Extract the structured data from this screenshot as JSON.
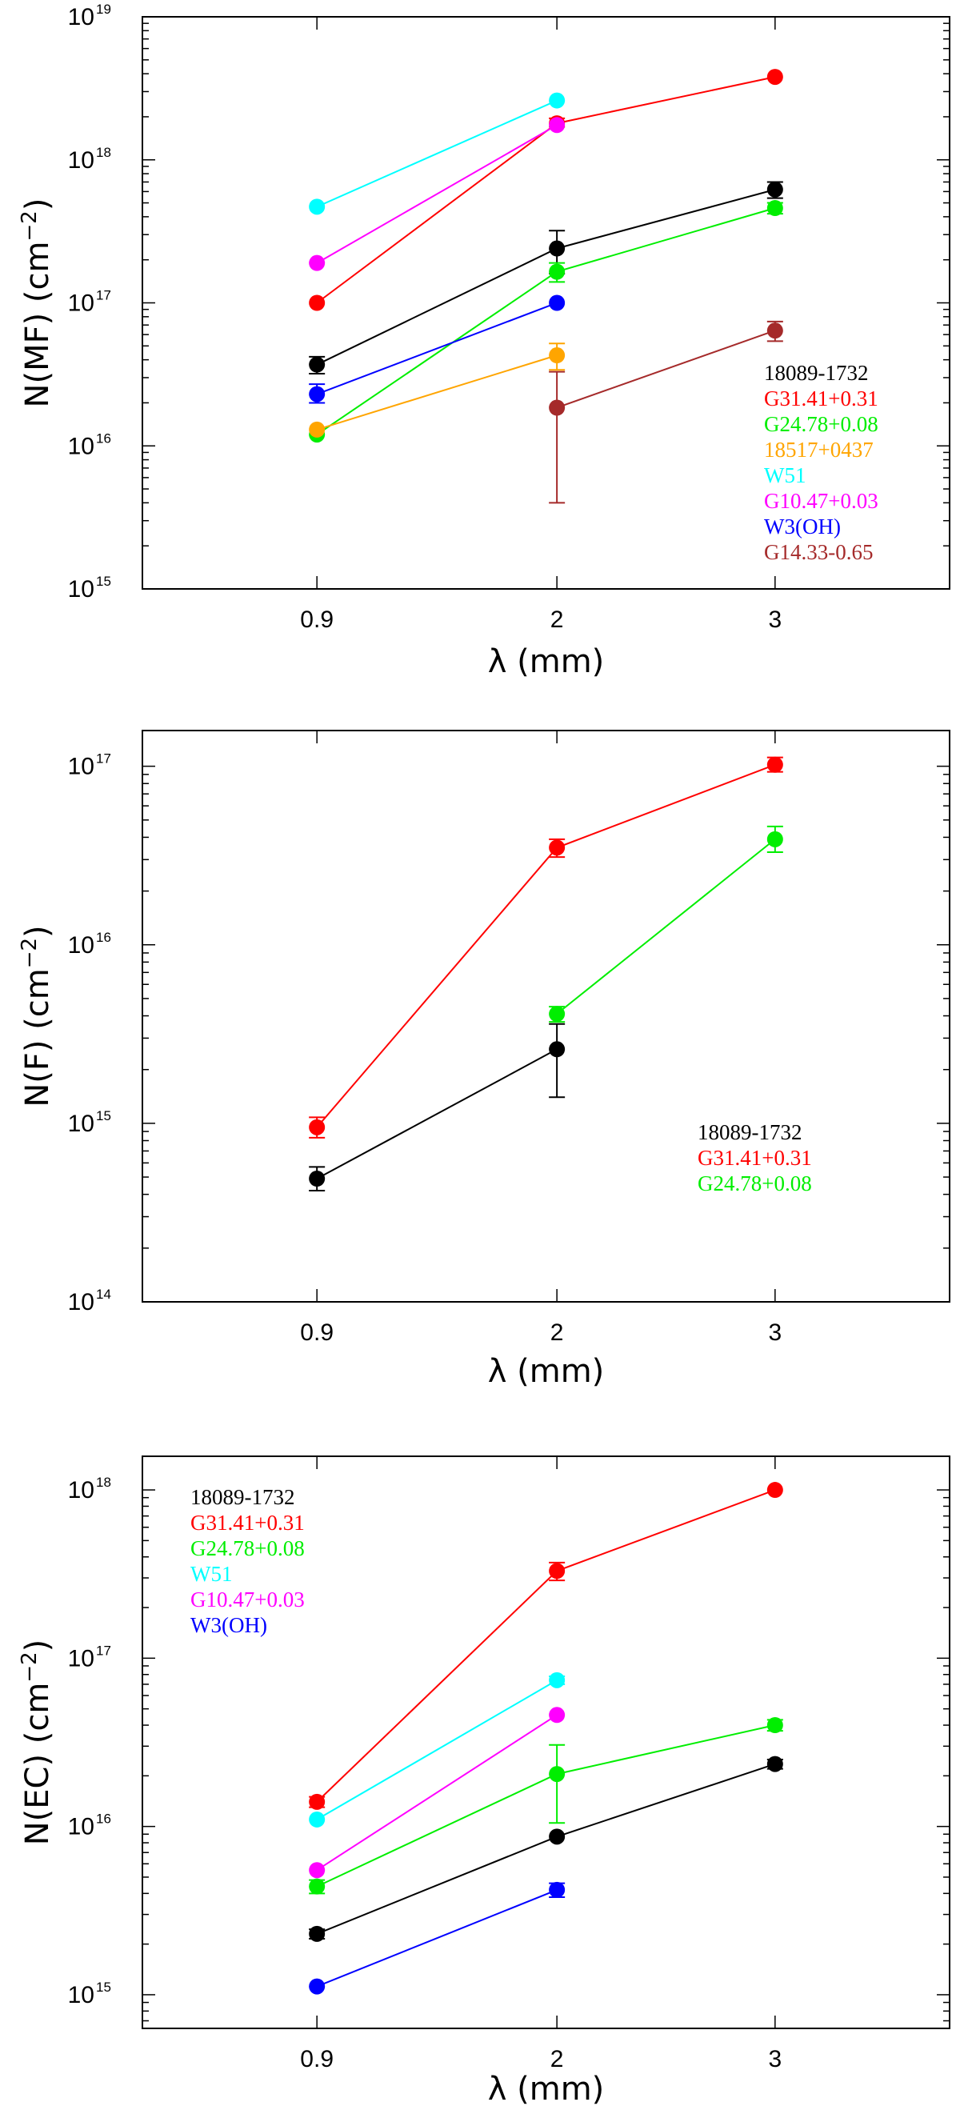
{
  "chart_data": [
    {
      "type": "scatter",
      "panel": "MF",
      "ylabel": "N(MF)  (cm",
      "ylabel_exp": "−2",
      "ylabel_close": ")",
      "xlabel": "λ  (mm)",
      "yscale": "log",
      "ylim_exp": [
        15,
        19
      ],
      "ytick_exps": [
        "15",
        "16",
        "17",
        "18",
        "19"
      ],
      "xlim": [
        0.1,
        3.8
      ],
      "x_ticks": [
        0.9,
        2,
        3
      ],
      "x_tick_labels": [
        "0.9",
        "2",
        "3"
      ],
      "legend_position": "lower-right",
      "series": [
        {
          "name": "18089-1732",
          "color": "#000000",
          "x": [
            0.9,
            2,
            3
          ],
          "y": [
            3.7e+16,
            2.4e+17,
            6.2e+17
          ],
          "yerr_low": [
            3.2e+16,
            1.6e+17,
            5.4e+17
          ],
          "yerr_high": [
            4.2e+16,
            3.2e+17,
            7e+17
          ]
        },
        {
          "name": "G31.41+0.31",
          "color": "#ff0000",
          "x": [
            0.9,
            2,
            3
          ],
          "y": [
            1e+17,
            1.8e+18,
            3.8e+18
          ],
          "yerr_low": [
            null,
            1.7e+18,
            null
          ],
          "yerr_high": [
            null,
            1.95e+18,
            null
          ]
        },
        {
          "name": "G24.78+0.08",
          "color": "#00ee00",
          "x": [
            0.9,
            2,
            3
          ],
          "y": [
            1.2e+16,
            1.65e+17,
            4.6e+17
          ],
          "yerr_low": [
            null,
            1.4e+17,
            4.2e+17
          ],
          "yerr_high": [
            null,
            1.9e+17,
            5e+17
          ]
        },
        {
          "name": "18517+0437",
          "color": "#ffa500",
          "x": [
            0.9,
            2
          ],
          "y": [
            1.3e+16,
            4.3e+16
          ],
          "yerr_low": [
            null,
            3.4e+16
          ],
          "yerr_high": [
            null,
            5.2e+16
          ]
        },
        {
          "name": "W51",
          "color": "#00ffff",
          "x": [
            0.9,
            2
          ],
          "y": [
            4.7e+17,
            2.6e+18
          ],
          "yerr_low": [
            null,
            null
          ],
          "yerr_high": [
            null,
            null
          ]
        },
        {
          "name": "G10.47+0.03",
          "color": "#ff00ff",
          "x": [
            0.9,
            2
          ],
          "y": [
            1.9e+17,
            1.75e+18
          ],
          "yerr_low": [
            null,
            null
          ],
          "yerr_high": [
            null,
            null
          ]
        },
        {
          "name": "W3(OH)",
          "color": "#0000ff",
          "x": [
            0.9,
            2
          ],
          "y": [
            2.3e+16,
            1e+17
          ],
          "yerr_low": [
            2e+16,
            null
          ],
          "yerr_high": [
            2.7e+16,
            null
          ]
        },
        {
          "name": "G14.33-0.65",
          "color": "#a52a2a",
          "x": [
            2,
            3
          ],
          "y": [
            1.85e+16,
            6.4e+16
          ],
          "yerr_low": [
            4000000000000000.0,
            5.4e+16
          ],
          "yerr_high": [
            3.3e+16,
            7.4e+16
          ]
        }
      ]
    },
    {
      "type": "scatter",
      "panel": "F",
      "ylabel": "N(F)  (cm",
      "ylabel_exp": "−2",
      "ylabel_close": ")",
      "xlabel": "λ  (mm)",
      "yscale": "log",
      "ylim_exp": [
        14,
        17.2
      ],
      "ytick_exps": [
        "14",
        "15",
        "16",
        "17"
      ],
      "xlim": [
        0.1,
        3.8
      ],
      "x_ticks": [
        0.9,
        2,
        3
      ],
      "x_tick_labels": [
        "0.9",
        "2",
        "3"
      ],
      "legend_position": "lower-right",
      "series": [
        {
          "name": "18089-1732",
          "color": "#000000",
          "x": [
            0.9,
            2
          ],
          "y": [
            490000000000000.0,
            2600000000000000.0
          ],
          "yerr_low": [
            420000000000000.0,
            1400000000000000.0
          ],
          "yerr_high": [
            570000000000000.0,
            3600000000000000.0
          ]
        },
        {
          "name": "G31.41+0.31",
          "color": "#ff0000",
          "x": [
            0.9,
            2,
            3
          ],
          "y": [
            950000000000000.0,
            3.5e+16,
            1.02e+17
          ],
          "yerr_low": [
            830000000000000.0,
            3.1e+16,
            9.3e+16
          ],
          "yerr_high": [
            1080000000000000.0,
            3.9e+16,
            1.12e+17
          ]
        },
        {
          "name": "G24.78+0.08",
          "color": "#00ee00",
          "x": [
            2,
            3
          ],
          "y": [
            4100000000000000.0,
            3.9e+16
          ],
          "yerr_low": [
            3700000000000000.0,
            3.3e+16
          ],
          "yerr_high": [
            4500000000000000.0,
            4.6e+16
          ]
        }
      ]
    },
    {
      "type": "scatter",
      "panel": "EC",
      "ylabel": "N(EC)  (cm",
      "ylabel_exp": "−2",
      "ylabel_close": ")",
      "xlabel": "λ  (mm)",
      "yscale": "log",
      "ylim_exp": [
        14.8,
        18.2
      ],
      "ytick_exps": [
        "15",
        "16",
        "17",
        "18"
      ],
      "xlim": [
        0.1,
        3.8
      ],
      "x_ticks": [
        0.9,
        2,
        3
      ],
      "x_tick_labels": [
        "0.9",
        "2",
        "3"
      ],
      "legend_position": "top-left",
      "series": [
        {
          "name": "18089-1732",
          "color": "#000000",
          "x": [
            0.9,
            2,
            3
          ],
          "y": [
            2300000000000000.0,
            8700000000000000.0,
            2.35e+16
          ],
          "yerr_low": [
            2150000000000000.0,
            null,
            2.2e+16
          ],
          "yerr_high": [
            2450000000000000.0,
            null,
            2.5e+16
          ]
        },
        {
          "name": "G31.41+0.31",
          "color": "#ff0000",
          "x": [
            0.9,
            2,
            3
          ],
          "y": [
            1.4e+16,
            3.3e+17,
            1e+18
          ],
          "yerr_low": [
            1.3e+16,
            2.9e+17,
            null
          ],
          "yerr_high": [
            1.5e+16,
            3.7e+17,
            null
          ]
        },
        {
          "name": "G24.78+0.08",
          "color": "#00ee00",
          "x": [
            0.9,
            2,
            3
          ],
          "y": [
            4400000000000000.0,
            2.05e+16,
            4e+16
          ],
          "yerr_low": [
            4000000000000000.0,
            1.05e+16,
            3.7e+16
          ],
          "yerr_high": [
            4800000000000000.0,
            3.05e+16,
            4.3e+16
          ]
        },
        {
          "name": "W51",
          "color": "#00ffff",
          "x": [
            0.9,
            2
          ],
          "y": [
            1.1e+16,
            7.4e+16
          ],
          "yerr_low": [
            null,
            7e+16
          ],
          "yerr_high": [
            null,
            7.8e+16
          ]
        },
        {
          "name": "G10.47+0.03",
          "color": "#ff00ff",
          "x": [
            0.9,
            2
          ],
          "y": [
            5500000000000000.0,
            4.6e+16
          ],
          "yerr_low": [
            null,
            null
          ],
          "yerr_high": [
            null,
            null
          ]
        },
        {
          "name": "W3(OH)",
          "color": "#0000ff",
          "x": [
            0.9,
            2
          ],
          "y": [
            1120000000000000.0,
            4200000000000000.0
          ],
          "yerr_low": [
            null,
            3800000000000000.0
          ],
          "yerr_high": [
            null,
            4600000000000000.0
          ]
        }
      ]
    }
  ]
}
